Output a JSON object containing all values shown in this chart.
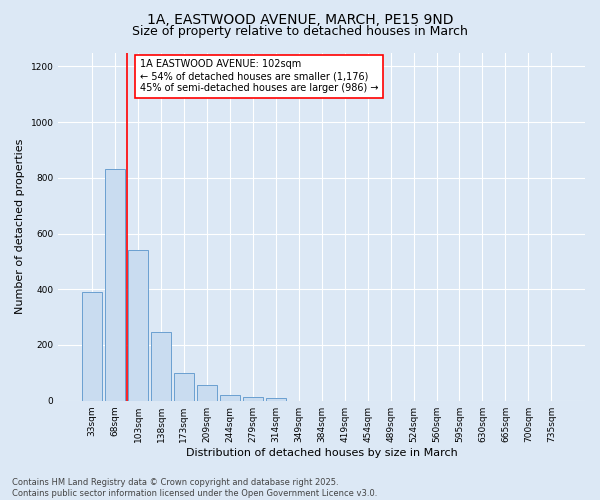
{
  "title_line1": "1A, EASTWOOD AVENUE, MARCH, PE15 9ND",
  "title_line2": "Size of property relative to detached houses in March",
  "xlabel": "Distribution of detached houses by size in March",
  "ylabel": "Number of detached properties",
  "categories": [
    "33sqm",
    "68sqm",
    "103sqm",
    "138sqm",
    "173sqm",
    "209sqm",
    "244sqm",
    "279sqm",
    "314sqm",
    "349sqm",
    "384sqm",
    "419sqm",
    "454sqm",
    "489sqm",
    "524sqm",
    "560sqm",
    "595sqm",
    "630sqm",
    "665sqm",
    "700sqm",
    "735sqm"
  ],
  "values": [
    390,
    830,
    540,
    245,
    100,
    55,
    20,
    13,
    8,
    0,
    0,
    0,
    0,
    0,
    0,
    0,
    0,
    0,
    0,
    0,
    0
  ],
  "bar_color": "#c9dcf0",
  "bar_edge_color": "#6a9fd0",
  "red_line_index": 2,
  "annotation_text": "1A EASTWOOD AVENUE: 102sqm\n← 54% of detached houses are smaller (1,176)\n45% of semi-detached houses are larger (986) →",
  "annotation_box_facecolor": "white",
  "annotation_box_edgecolor": "red",
  "ylim": [
    0,
    1250
  ],
  "yticks": [
    0,
    200,
    400,
    600,
    800,
    1000,
    1200
  ],
  "bg_color": "#dce8f5",
  "footer_text": "Contains HM Land Registry data © Crown copyright and database right 2025.\nContains public sector information licensed under the Open Government Licence v3.0.",
  "title_fontsize": 10,
  "subtitle_fontsize": 9,
  "axis_label_fontsize": 8,
  "tick_fontsize": 6.5,
  "annotation_fontsize": 7,
  "footer_fontsize": 6
}
